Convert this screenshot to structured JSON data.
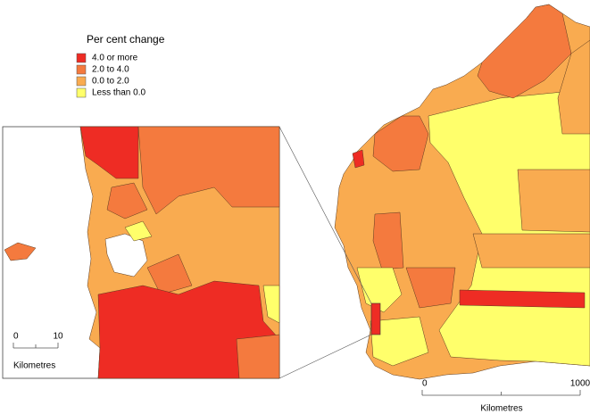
{
  "legend": {
    "title": "Per cent change",
    "items": [
      {
        "label": "4.0 or more",
        "color": "#ee2c24"
      },
      {
        "label": "2.0 to 4.0",
        "color": "#f47a3e"
      },
      {
        "label": "0.0 to 2.0",
        "color": "#f9ab50"
      },
      {
        "label": "Less than 0.0",
        "color": "#ffff6b"
      }
    ]
  },
  "inset_scale": {
    "ticks": [
      0,
      10
    ],
    "unit": "Kilometres"
  },
  "main_scale": {
    "ticks": [
      0,
      1000
    ],
    "unit": "Kilometres"
  }
}
